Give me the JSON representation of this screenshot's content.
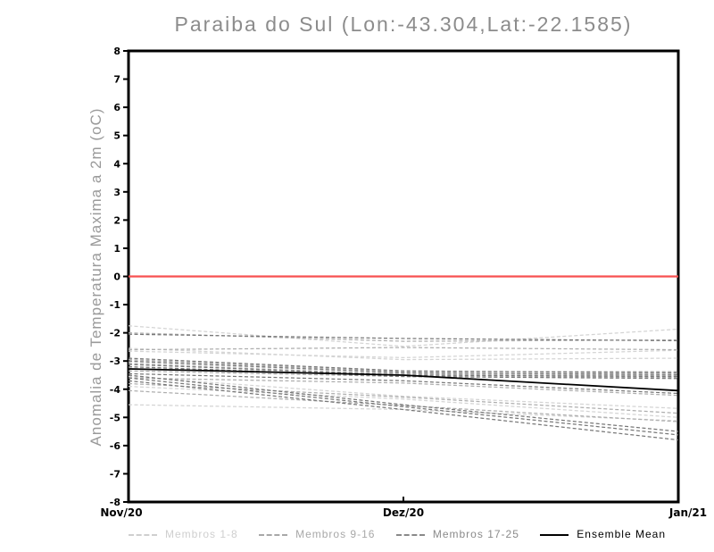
{
  "chart_data": {
    "type": "line",
    "title": "Paraiba do Sul (Lon:-43.304,Lat:-22.1585)",
    "ylabel": "Anomalia de Temperatura Maxima a 2m (oC)",
    "xlabel": "",
    "x_tick_labels": [
      "Nov/20",
      "Dez/20",
      "Jan/21"
    ],
    "y_tick_labels": [
      "8",
      "7",
      "6",
      "5",
      "4",
      "3",
      "2",
      "1",
      "0",
      "-1",
      "-2",
      "-3",
      "-4",
      "-5",
      "-6",
      "-7",
      "-8"
    ],
    "ylim": [
      -8,
      8
    ],
    "grid": "off",
    "frame_color": "#000000",
    "background_color": "#ffffff",
    "zero_line": {
      "value": 0,
      "color": "#f85050"
    },
    "member_groups": [
      {
        "name": "Membros 1-8",
        "color": "#d4d4d4",
        "style": "dashed",
        "members": [
          [
            -1.75,
            -2.48,
            -1.87
          ],
          [
            -2.55,
            -2.95,
            -2.9
          ],
          [
            -2.65,
            -2.88,
            -2.62
          ],
          [
            -3.05,
            -3.42,
            -3.5
          ],
          [
            -3.25,
            -3.45,
            -3.42
          ],
          [
            -3.55,
            -4.25,
            -4.68
          ],
          [
            -3.9,
            -4.35,
            -5.0
          ],
          [
            -4.55,
            -4.72,
            -5.12
          ]
        ]
      },
      {
        "name": "Membros 9-16",
        "color": "#aeaeae",
        "style": "dashed",
        "members": [
          [
            -2.0,
            -2.3,
            -2.25
          ],
          [
            -2.6,
            -2.52,
            -2.6
          ],
          [
            -2.95,
            -3.38,
            -3.38
          ],
          [
            -3.1,
            -3.48,
            -3.52
          ],
          [
            -3.35,
            -3.55,
            -3.58
          ],
          [
            -3.6,
            -3.78,
            -4.22
          ],
          [
            -3.8,
            -4.28,
            -4.85
          ],
          [
            -4.05,
            -4.58,
            -5.15
          ]
        ]
      },
      {
        "name": "Membros 17-25",
        "color": "#787878",
        "style": "dashed",
        "members": [
          [
            -2.05,
            -2.2,
            -2.28
          ],
          [
            -2.9,
            -3.35,
            -3.42
          ],
          [
            -3.0,
            -3.42,
            -3.48
          ],
          [
            -3.12,
            -3.5,
            -3.55
          ],
          [
            -3.2,
            -3.55,
            -3.62
          ],
          [
            -3.45,
            -3.7,
            -4.15
          ],
          [
            -3.5,
            -4.55,
            -5.5
          ],
          [
            -3.6,
            -4.62,
            -5.62
          ],
          [
            -3.7,
            -4.72,
            -5.8
          ]
        ]
      }
    ],
    "ensemble_mean": {
      "name": "Ensemble Mean",
      "color": "#000000",
      "style": "solid",
      "values": [
        -3.28,
        -3.5,
        -4.05
      ]
    },
    "legend": [
      {
        "label": "Membros 1-8",
        "color": "#cfcfcf",
        "style": "dashed"
      },
      {
        "label": "Membros 9-16",
        "color": "#a8a8a8",
        "style": "dashed"
      },
      {
        "label": "Membros 17-25",
        "color": "#8a8a8a",
        "style": "dashed"
      },
      {
        "label": "Ensemble Mean",
        "color": "#000000",
        "style": "solid"
      }
    ]
  }
}
